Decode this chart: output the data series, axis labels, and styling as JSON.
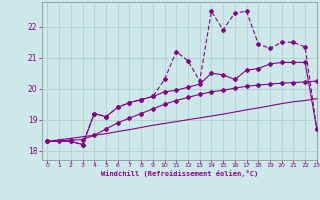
{
  "xlabel": "Windchill (Refroidissement éolien,°C)",
  "background_color": "#cce8e8",
  "line_color": "#880088",
  "grid_color": "#aacccc",
  "xlim": [
    -0.5,
    23
  ],
  "ylim": [
    17.7,
    22.8
  ],
  "xticks": [
    0,
    1,
    2,
    3,
    4,
    5,
    6,
    7,
    8,
    9,
    10,
    11,
    12,
    13,
    14,
    15,
    16,
    17,
    18,
    19,
    20,
    21,
    22,
    23
  ],
  "yticks": [
    18,
    19,
    20,
    21,
    22
  ],
  "line1_x": [
    0,
    1,
    2,
    3,
    4,
    5,
    6,
    7,
    8,
    9,
    10,
    11,
    12,
    13,
    14,
    15,
    16,
    17,
    18,
    19,
    20,
    21,
    22,
    23
  ],
  "line1_y": [
    18.3,
    18.35,
    18.4,
    18.45,
    18.5,
    18.55,
    18.62,
    18.68,
    18.75,
    18.82,
    18.88,
    18.94,
    19.0,
    19.06,
    19.12,
    19.18,
    19.25,
    19.32,
    19.38,
    19.45,
    19.52,
    19.58,
    19.62,
    19.68
  ],
  "line2_x": [
    0,
    1,
    2,
    3,
    4,
    5,
    6,
    7,
    8,
    9,
    10,
    11,
    12,
    13,
    14,
    15,
    16,
    17,
    18,
    19,
    20,
    21,
    22,
    23
  ],
  "line2_y": [
    18.3,
    18.32,
    18.34,
    18.36,
    18.5,
    18.7,
    18.9,
    19.05,
    19.2,
    19.35,
    19.5,
    19.62,
    19.72,
    19.82,
    19.9,
    19.95,
    20.02,
    20.08,
    20.12,
    20.15,
    20.18,
    20.2,
    20.22,
    20.25
  ],
  "line3_x": [
    0,
    2,
    3,
    4,
    5,
    6,
    7,
    8,
    9,
    10,
    11,
    12,
    13,
    14,
    15,
    16,
    17,
    18,
    19,
    20,
    21,
    22,
    23
  ],
  "line3_y": [
    18.3,
    18.3,
    18.2,
    19.2,
    19.1,
    19.4,
    19.55,
    19.65,
    19.75,
    19.9,
    19.95,
    20.05,
    20.15,
    20.5,
    20.45,
    20.3,
    20.6,
    20.65,
    20.8,
    20.85,
    20.85,
    20.85,
    18.7
  ],
  "line4_x": [
    0,
    2,
    3,
    4,
    5,
    6,
    7,
    8,
    9,
    10,
    11,
    12,
    13,
    14,
    15,
    16,
    17,
    18,
    19,
    20,
    21,
    22,
    23
  ],
  "line4_y": [
    18.3,
    18.3,
    18.2,
    19.2,
    19.1,
    19.4,
    19.55,
    19.65,
    19.75,
    20.3,
    21.2,
    20.9,
    20.25,
    22.5,
    21.9,
    22.45,
    22.5,
    21.45,
    21.3,
    21.5,
    21.5,
    21.35,
    18.7
  ]
}
